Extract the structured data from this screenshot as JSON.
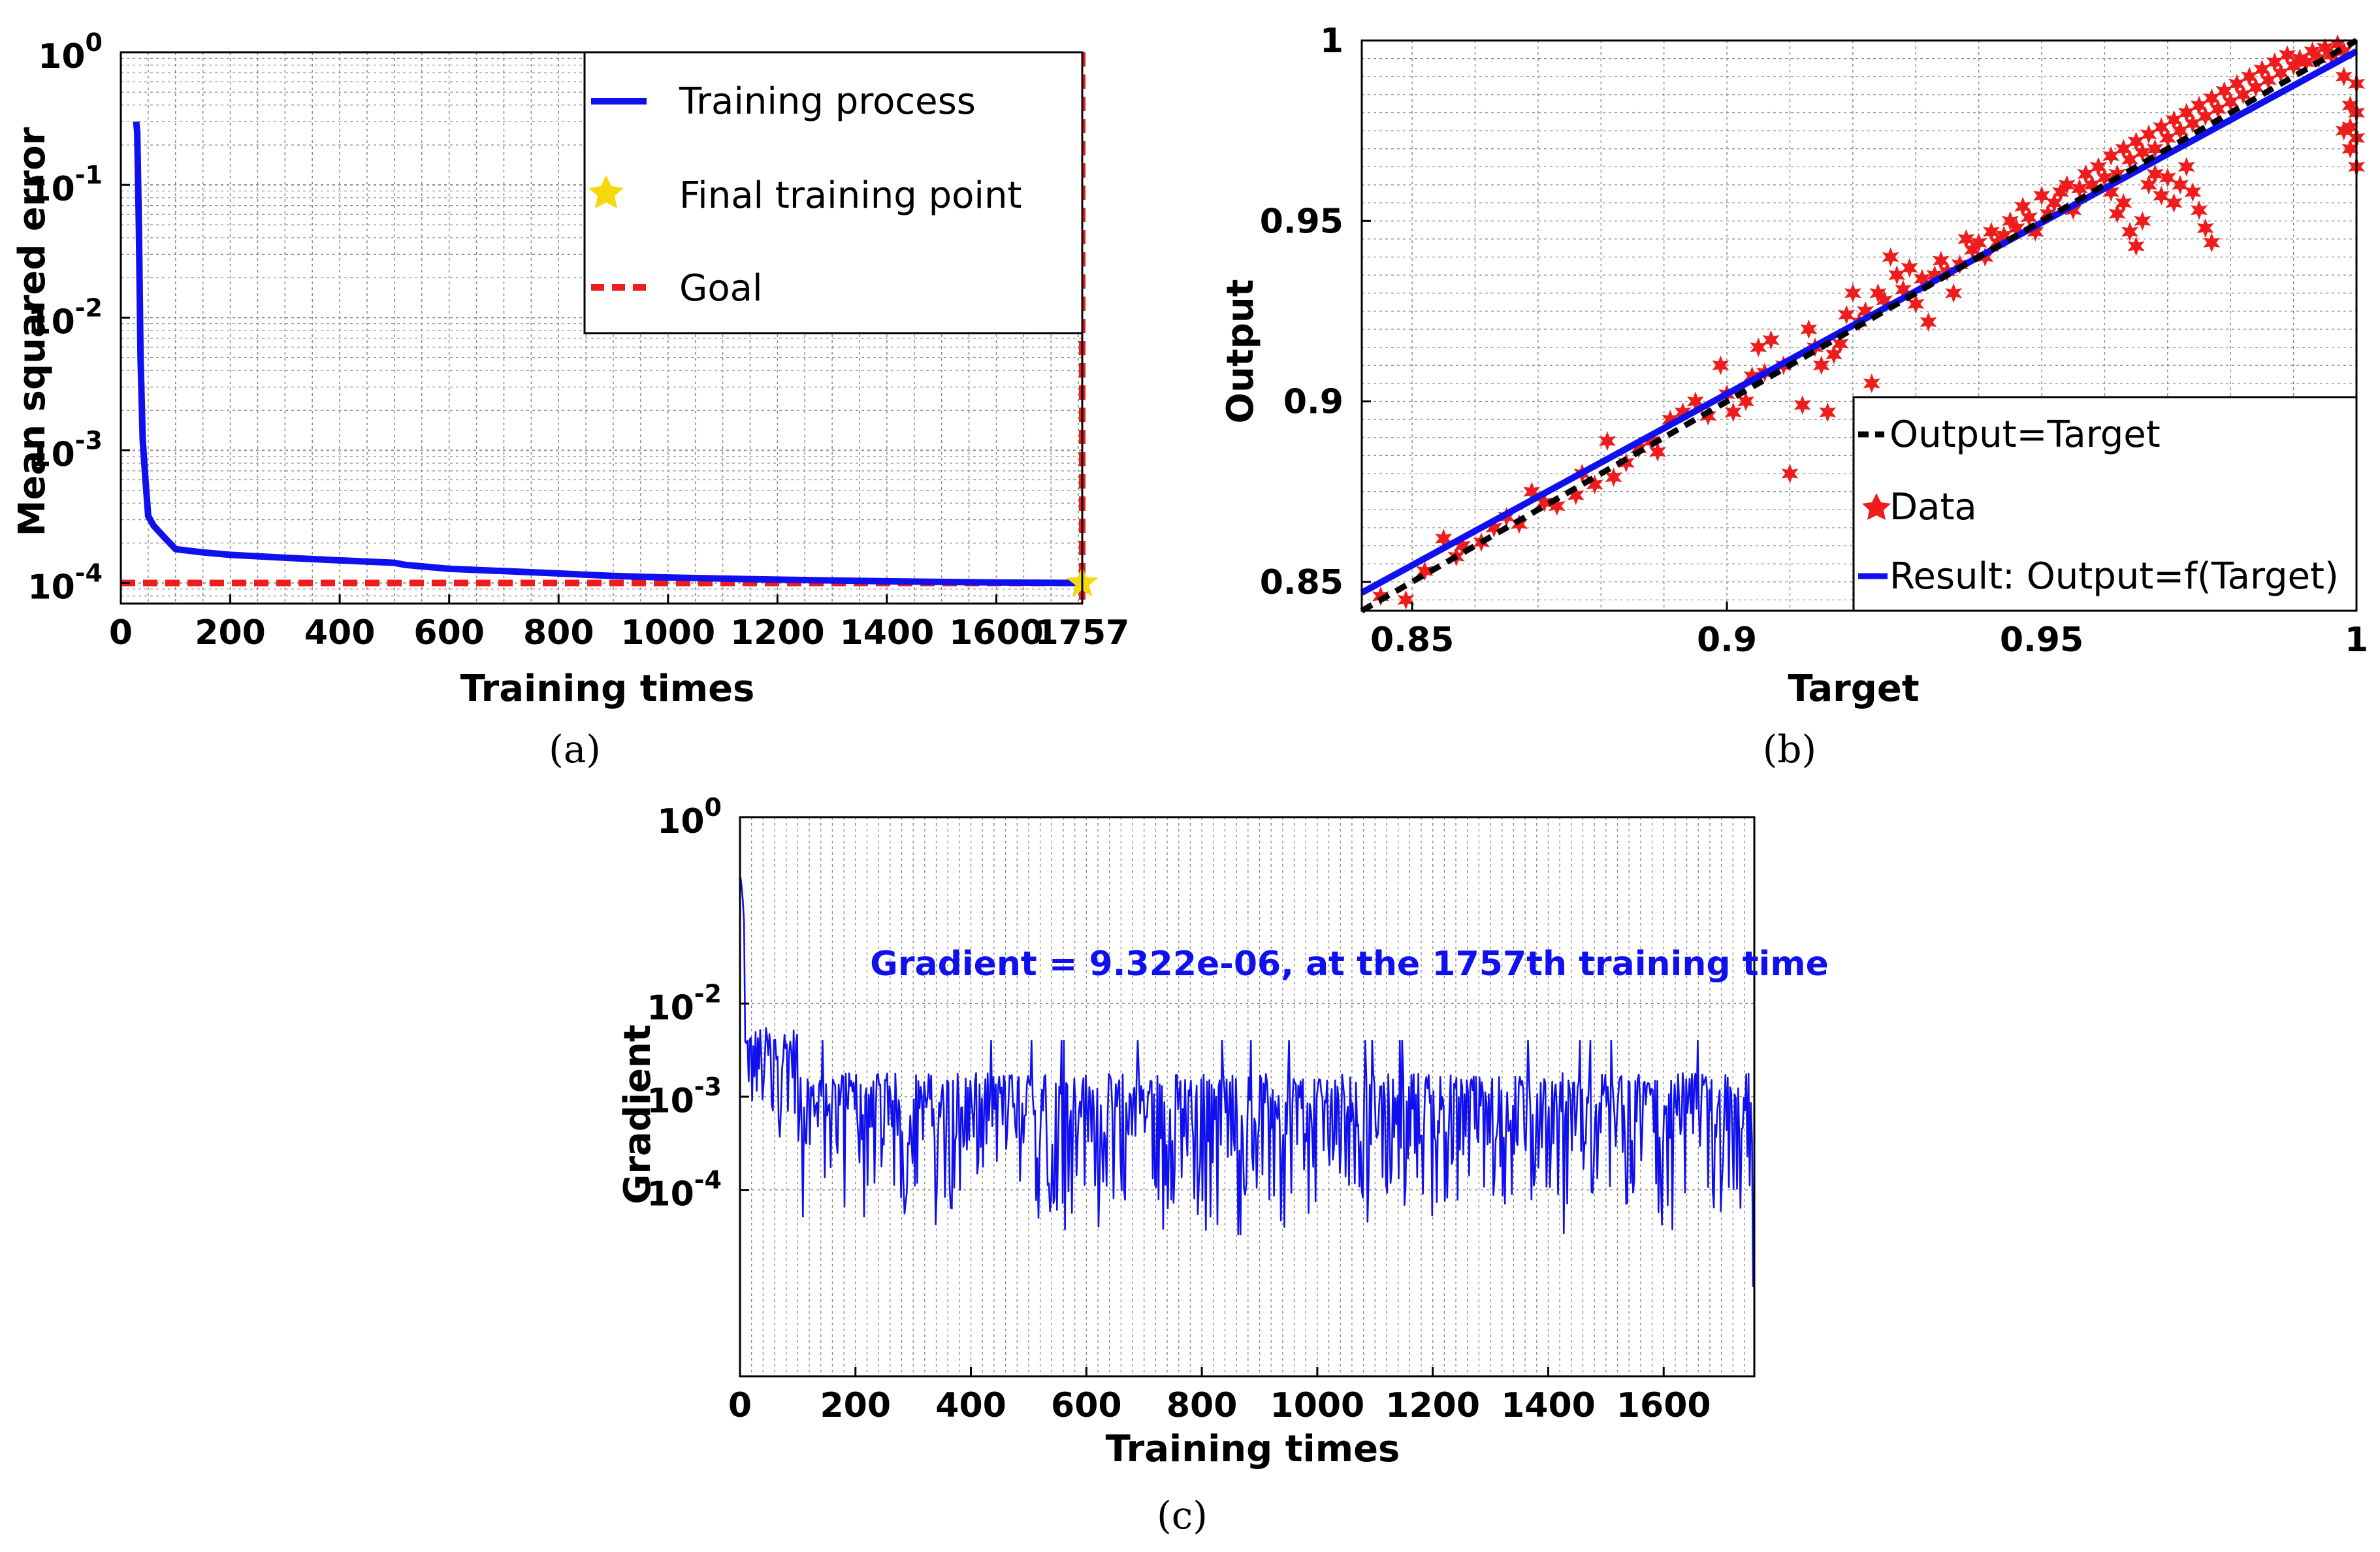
{
  "colors": {
    "blue": "#1010ee",
    "red": "#ee1c1c",
    "black": "#000000",
    "gold": "#f5d90a",
    "grid": "#888888"
  },
  "chart_data": [
    {
      "id": "a",
      "type": "line",
      "panel_label": "(a)",
      "xlabel": "Training times",
      "ylabel": "Mean squared error",
      "yscale": "log",
      "xlim": [
        0,
        1757
      ],
      "ylim": [
        7e-05,
        1
      ],
      "xticks": [
        0,
        200,
        400,
        600,
        800,
        1000,
        1200,
        1400,
        1600,
        1757
      ],
      "xtick_labels": [
        "0",
        "200",
        "400",
        "600",
        "800",
        "1000",
        "1200",
        "1400",
        "1600",
        "1757"
      ],
      "ytick_base": "10",
      "yticks": [
        {
          "value": 1,
          "exp": "0"
        },
        {
          "value": 0.1,
          "exp": "-1"
        },
        {
          "value": 0.01,
          "exp": "-2"
        },
        {
          "value": 0.001,
          "exp": "-3"
        },
        {
          "value": 0.0001,
          "exp": "-4"
        }
      ],
      "series": [
        {
          "name": "Training process",
          "x": [
            28,
            30,
            33,
            36,
            40,
            45,
            50,
            60,
            80,
            100,
            150,
            200,
            300,
            400,
            500,
            520,
            600,
            700,
            800,
            900,
            1000,
            1200,
            1400,
            1600,
            1757
          ],
          "y": [
            0.3,
            0.25,
            0.05,
            0.005,
            0.0012,
            0.0006,
            0.00032,
            0.00027,
            0.00022,
            0.00018,
            0.00017,
            0.000163,
            0.000155,
            0.000148,
            0.000142,
            0.000137,
            0.000128,
            0.000123,
            0.000118,
            0.000113,
            0.00011,
            0.000106,
            0.000103,
            0.000101,
            0.0001
          ]
        }
      ],
      "final_point": {
        "label": "Final training point",
        "x": 1757,
        "y": 0.0001
      },
      "goal": {
        "label": "Goal",
        "value": 0.0001
      },
      "legend": {
        "position": "top-right",
        "entries": [
          "Training process",
          "Final training point",
          "Goal"
        ]
      }
    },
    {
      "id": "b",
      "type": "scatter",
      "panel_label": "(b)",
      "xlabel": "Target",
      "ylabel": "Output",
      "xlim": [
        0.842,
        1
      ],
      "ylim": [
        0.842,
        1
      ],
      "xticks": [
        0.85,
        0.9,
        0.95,
        1
      ],
      "xtick_labels": [
        "0.85",
        "0.9",
        "0.95",
        "1"
      ],
      "yticks": [
        0.85,
        0.9,
        0.95,
        1
      ],
      "ytick_labels": [
        "0.85",
        "0.9",
        "0.95",
        "1"
      ],
      "fit_line": {
        "name": "Result: Output=f(Target)",
        "x": [
          0.842,
          1
        ],
        "y": [
          0.847,
          0.997
        ]
      },
      "identity_line": {
        "name": "Output=Target",
        "x": [
          0.842,
          1
        ],
        "y": [
          0.842,
          1
        ]
      },
      "scatter_series": {
        "name": "Data",
        "points": [
          [
            0.845,
            0.846
          ],
          [
            0.849,
            0.845
          ],
          [
            0.852,
            0.853
          ],
          [
            0.855,
            0.862
          ],
          [
            0.857,
            0.857
          ],
          [
            0.858,
            0.86
          ],
          [
            0.861,
            0.861
          ],
          [
            0.863,
            0.865
          ],
          [
            0.865,
            0.868
          ],
          [
            0.867,
            0.866
          ],
          [
            0.869,
            0.875
          ],
          [
            0.871,
            0.872
          ],
          [
            0.873,
            0.871
          ],
          [
            0.876,
            0.874
          ],
          [
            0.877,
            0.88
          ],
          [
            0.879,
            0.877
          ],
          [
            0.881,
            0.889
          ],
          [
            0.882,
            0.879
          ],
          [
            0.884,
            0.883
          ],
          [
            0.886,
            0.887
          ],
          [
            0.888,
            0.889
          ],
          [
            0.889,
            0.886
          ],
          [
            0.891,
            0.895
          ],
          [
            0.893,
            0.897
          ],
          [
            0.895,
            0.9
          ],
          [
            0.897,
            0.896
          ],
          [
            0.899,
            0.91
          ],
          [
            0.9,
            0.902
          ],
          [
            0.901,
            0.897
          ],
          [
            0.903,
            0.9
          ],
          [
            0.904,
            0.907
          ],
          [
            0.905,
            0.915
          ],
          [
            0.906,
            0.908
          ],
          [
            0.907,
            0.917
          ],
          [
            0.909,
            0.91
          ],
          [
            0.91,
            0.88
          ],
          [
            0.912,
            0.899
          ],
          [
            0.913,
            0.92
          ],
          [
            0.914,
            0.915
          ],
          [
            0.915,
            0.91
          ],
          [
            0.916,
            0.897
          ],
          [
            0.917,
            0.913
          ],
          [
            0.918,
            0.916
          ],
          [
            0.919,
            0.924
          ],
          [
            0.92,
            0.93
          ],
          [
            0.921,
            0.922
          ],
          [
            0.922,
            0.925
          ],
          [
            0.923,
            0.905
          ],
          [
            0.924,
            0.93
          ],
          [
            0.925,
            0.928
          ],
          [
            0.926,
            0.94
          ],
          [
            0.927,
            0.935
          ],
          [
            0.928,
            0.931
          ],
          [
            0.929,
            0.937
          ],
          [
            0.93,
            0.927
          ],
          [
            0.931,
            0.934
          ],
          [
            0.932,
            0.922
          ],
          [
            0.933,
            0.935
          ],
          [
            0.934,
            0.939
          ],
          [
            0.935,
            0.936
          ],
          [
            0.936,
            0.93
          ],
          [
            0.937,
            0.938
          ],
          [
            0.938,
            0.945
          ],
          [
            0.939,
            0.942
          ],
          [
            0.94,
            0.944
          ],
          [
            0.941,
            0.94
          ],
          [
            0.942,
            0.947
          ],
          [
            0.943,
            0.944
          ],
          [
            0.944,
            0.946
          ],
          [
            0.945,
            0.95
          ],
          [
            0.946,
            0.948
          ],
          [
            0.947,
            0.954
          ],
          [
            0.948,
            0.951
          ],
          [
            0.949,
            0.947
          ],
          [
            0.95,
            0.957
          ],
          [
            0.951,
            0.952
          ],
          [
            0.952,
            0.955
          ],
          [
            0.953,
            0.958
          ],
          [
            0.954,
            0.96
          ],
          [
            0.955,
            0.953
          ],
          [
            0.956,
            0.959
          ],
          [
            0.957,
            0.963
          ],
          [
            0.958,
            0.96
          ],
          [
            0.959,
            0.965
          ],
          [
            0.96,
            0.962
          ],
          [
            0.961,
            0.968
          ],
          [
            0.962,
            0.963
          ],
          [
            0.963,
            0.97
          ],
          [
            0.964,
            0.967
          ],
          [
            0.965,
            0.972
          ],
          [
            0.966,
            0.969
          ],
          [
            0.967,
            0.974
          ],
          [
            0.968,
            0.97
          ],
          [
            0.969,
            0.976
          ],
          [
            0.97,
            0.973
          ],
          [
            0.971,
            0.978
          ],
          [
            0.972,
            0.975
          ],
          [
            0.973,
            0.98
          ],
          [
            0.974,
            0.977
          ],
          [
            0.975,
            0.982
          ],
          [
            0.976,
            0.979
          ],
          [
            0.977,
            0.984
          ],
          [
            0.978,
            0.981
          ],
          [
            0.979,
            0.986
          ],
          [
            0.98,
            0.983
          ],
          [
            0.981,
            0.988
          ],
          [
            0.982,
            0.985
          ],
          [
            0.983,
            0.99
          ],
          [
            0.984,
            0.987
          ],
          [
            0.985,
            0.992
          ],
          [
            0.986,
            0.989
          ],
          [
            0.987,
            0.994
          ],
          [
            0.988,
            0.991
          ],
          [
            0.989,
            0.996
          ],
          [
            0.99,
            0.993
          ],
          [
            0.991,
            0.995
          ],
          [
            0.992,
            0.994
          ],
          [
            0.993,
            0.997
          ],
          [
            0.994,
            0.995
          ],
          [
            0.995,
            0.998
          ],
          [
            0.996,
            0.996
          ],
          [
            0.997,
            0.999
          ],
          [
            0.998,
            0.997
          ],
          [
            0.961,
            0.958
          ],
          [
            0.962,
            0.952
          ],
          [
            0.963,
            0.955
          ],
          [
            0.964,
            0.947
          ],
          [
            0.965,
            0.943
          ],
          [
            0.966,
            0.95
          ],
          [
            0.967,
            0.96
          ],
          [
            0.968,
            0.963
          ],
          [
            0.969,
            0.957
          ],
          [
            0.97,
            0.962
          ],
          [
            0.971,
            0.955
          ],
          [
            0.972,
            0.96
          ],
          [
            0.973,
            0.965
          ],
          [
            0.974,
            0.958
          ],
          [
            0.975,
            0.953
          ],
          [
            0.976,
            0.948
          ],
          [
            0.977,
            0.944
          ],
          [
            0.998,
            0.975
          ],
          [
            0.999,
            0.97
          ],
          [
            1.0,
            0.965
          ],
          [
            1.0,
            0.973
          ],
          [
            0.999,
            0.982
          ],
          [
            1.0,
            0.988
          ],
          [
            0.998,
            0.99
          ],
          [
            1.0,
            0.98
          ],
          [
            0.999,
            0.976
          ]
        ]
      },
      "legend": {
        "position": "bottom-right",
        "entries": [
          "Output=Target",
          "Data",
          "Result: Output=f(Target)"
        ]
      }
    },
    {
      "id": "c",
      "type": "line",
      "panel_label": "(c)",
      "xlabel": "Training times",
      "ylabel": "Gradient",
      "yscale": "log",
      "xlim": [
        0,
        1757
      ],
      "ylim": [
        1e-06,
        1
      ],
      "xticks": [
        0,
        200,
        400,
        600,
        800,
        1000,
        1200,
        1400,
        1600
      ],
      "xtick_labels": [
        "0",
        "200",
        "400",
        "600",
        "800",
        "1000",
        "1200",
        "1400",
        "1600"
      ],
      "ytick_base": "10",
      "yticks": [
        {
          "value": 1,
          "exp": "0"
        },
        {
          "value": 0.01,
          "exp": "-2"
        },
        {
          "value": 0.001,
          "exp": "-3"
        },
        {
          "value": 0.0001,
          "exp": "-4"
        }
      ],
      "annotation": "Gradient = 9.322e-06, at the 1757th training time",
      "series": {
        "name": "Gradient",
        "description": "oscillating gradient around 1e-3, spikes near start up to ~0.25, final value 9.322e-06 at 1757",
        "start_peak": 0.25,
        "typical_level": 0.001,
        "min_level": 3e-05,
        "final_value": 9.322e-06,
        "final_x": 1757
      }
    }
  ]
}
